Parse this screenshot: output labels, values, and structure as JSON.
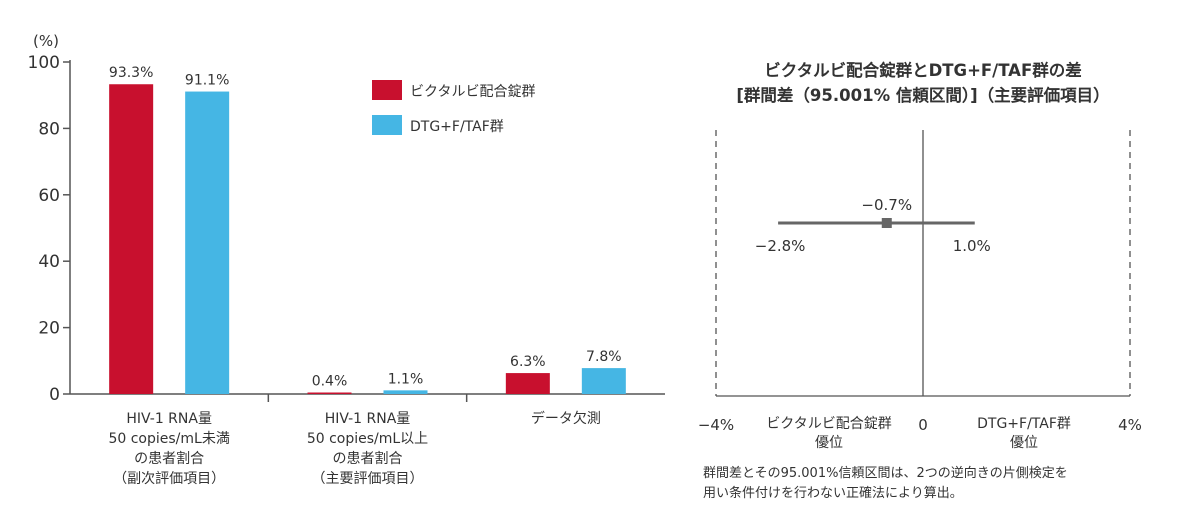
{
  "chart_data": [
    {
      "type": "bar",
      "ylabel": "(%)",
      "ylim": [
        0,
        100
      ],
      "yticks": [
        0,
        20,
        40,
        60,
        80,
        100
      ],
      "categories": [
        [
          "HIV-1 RNA量",
          "50 copies/mL未満",
          "の患者割合",
          "（副次評価項目）"
        ],
        [
          "HIV-1 RNA量",
          "50 copies/mL以上",
          "の患者割合",
          "（主要評価項目）"
        ],
        [
          "データ欠測"
        ]
      ],
      "series": [
        {
          "name": "ビクタルビ配合錠群",
          "color": "#c8102e",
          "values": [
            93.3,
            0.4,
            6.3
          ],
          "labels": [
            "93.3%",
            "0.4%",
            "6.3%"
          ]
        },
        {
          "name": "DTG+F/TAF群",
          "color": "#45b6e4",
          "values": [
            91.1,
            1.1,
            7.8
          ],
          "labels": [
            "91.1%",
            "1.1%",
            "7.8%"
          ]
        }
      ],
      "legend_position": "top-right"
    },
    {
      "type": "forest",
      "title": [
        "ビクタルビ配合錠群とDTG+F/TAF群の差",
        "[群間差（95.001% 信頼区間）]（主要評価項目）"
      ],
      "xlim": [
        -4,
        4
      ],
      "xticks": [
        {
          "value": -4,
          "label": "−4%"
        },
        {
          "value": 0,
          "label": "0"
        },
        {
          "value": 4,
          "label": "4%"
        }
      ],
      "estimate": -0.7,
      "ci": [
        -2.8,
        1.0
      ],
      "estimate_label": "−0.7%",
      "ci_low_label": "−2.8%",
      "ci_high_label": "1.0%",
      "favors_left": [
        "ビクタルビ配合錠群",
        "優位"
      ],
      "favors_right": [
        "DTG+F/TAF群",
        "優位"
      ],
      "footnote": [
        "群間差とその95.001%信頼区間は、2つの逆向きの片側検定を",
        "用い条件付けを行わない正確法により算出。"
      ]
    }
  ]
}
